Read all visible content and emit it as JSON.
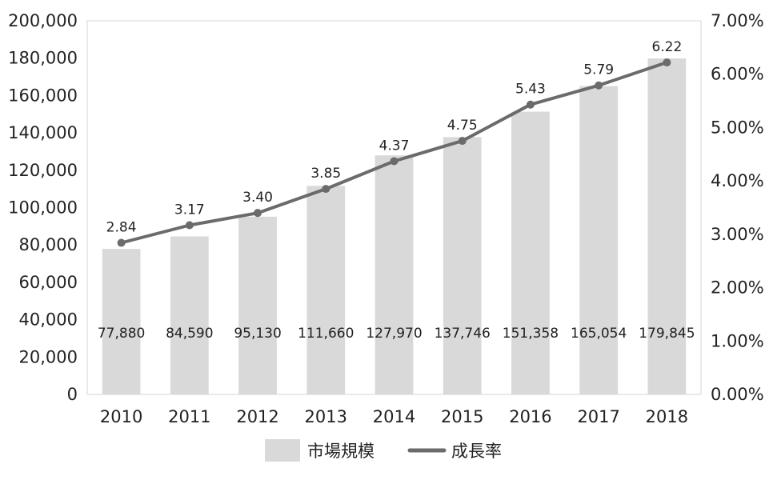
{
  "chart_data": {
    "type": "bar",
    "categories": [
      "2010",
      "2011",
      "2012",
      "2013",
      "2014",
      "2015",
      "2016",
      "2017",
      "2018"
    ],
    "series": [
      {
        "name": "市場規模",
        "type": "bar",
        "axis": "left",
        "values": [
          77880,
          84590,
          95130,
          111660,
          127970,
          137746,
          151358,
          165054,
          179845
        ],
        "labels": [
          "77,880",
          "84,590",
          "95,130",
          "111,660",
          "127,970",
          "137,746",
          "151,358",
          "165,054",
          "179,845"
        ],
        "color": "#d9d9d9"
      },
      {
        "name": "成長率",
        "type": "line",
        "axis": "right",
        "values": [
          2.84,
          3.17,
          3.4,
          3.85,
          4.37,
          4.75,
          5.43,
          5.79,
          6.22
        ],
        "labels": [
          "2.84",
          "3.17",
          "3.40",
          "3.85",
          "4.37",
          "4.75",
          "5.43",
          "5.79",
          "6.22"
        ],
        "color": "#6b6b6b"
      }
    ],
    "y_left": {
      "ylim": [
        0,
        200000
      ],
      "ticks": [
        0,
        20000,
        40000,
        60000,
        80000,
        100000,
        120000,
        140000,
        160000,
        180000,
        200000
      ],
      "tick_labels": [
        "0",
        "20,000",
        "40,000",
        "60,000",
        "80,000",
        "100,000",
        "120,000",
        "140,000",
        "160,000",
        "180,000",
        "200,000"
      ]
    },
    "y_right": {
      "ylim": [
        0,
        7
      ],
      "ticks": [
        0,
        1,
        2,
        3,
        4,
        5,
        6,
        7
      ],
      "tick_labels": [
        "0.00%",
        "1.00%",
        "2.00%",
        "3.00%",
        "4.00%",
        "5.00%",
        "6.00%",
        "7.00%"
      ]
    },
    "title": "",
    "xlabel": "",
    "ylabel": "",
    "grid": false,
    "legend_position": "bottom-center"
  }
}
